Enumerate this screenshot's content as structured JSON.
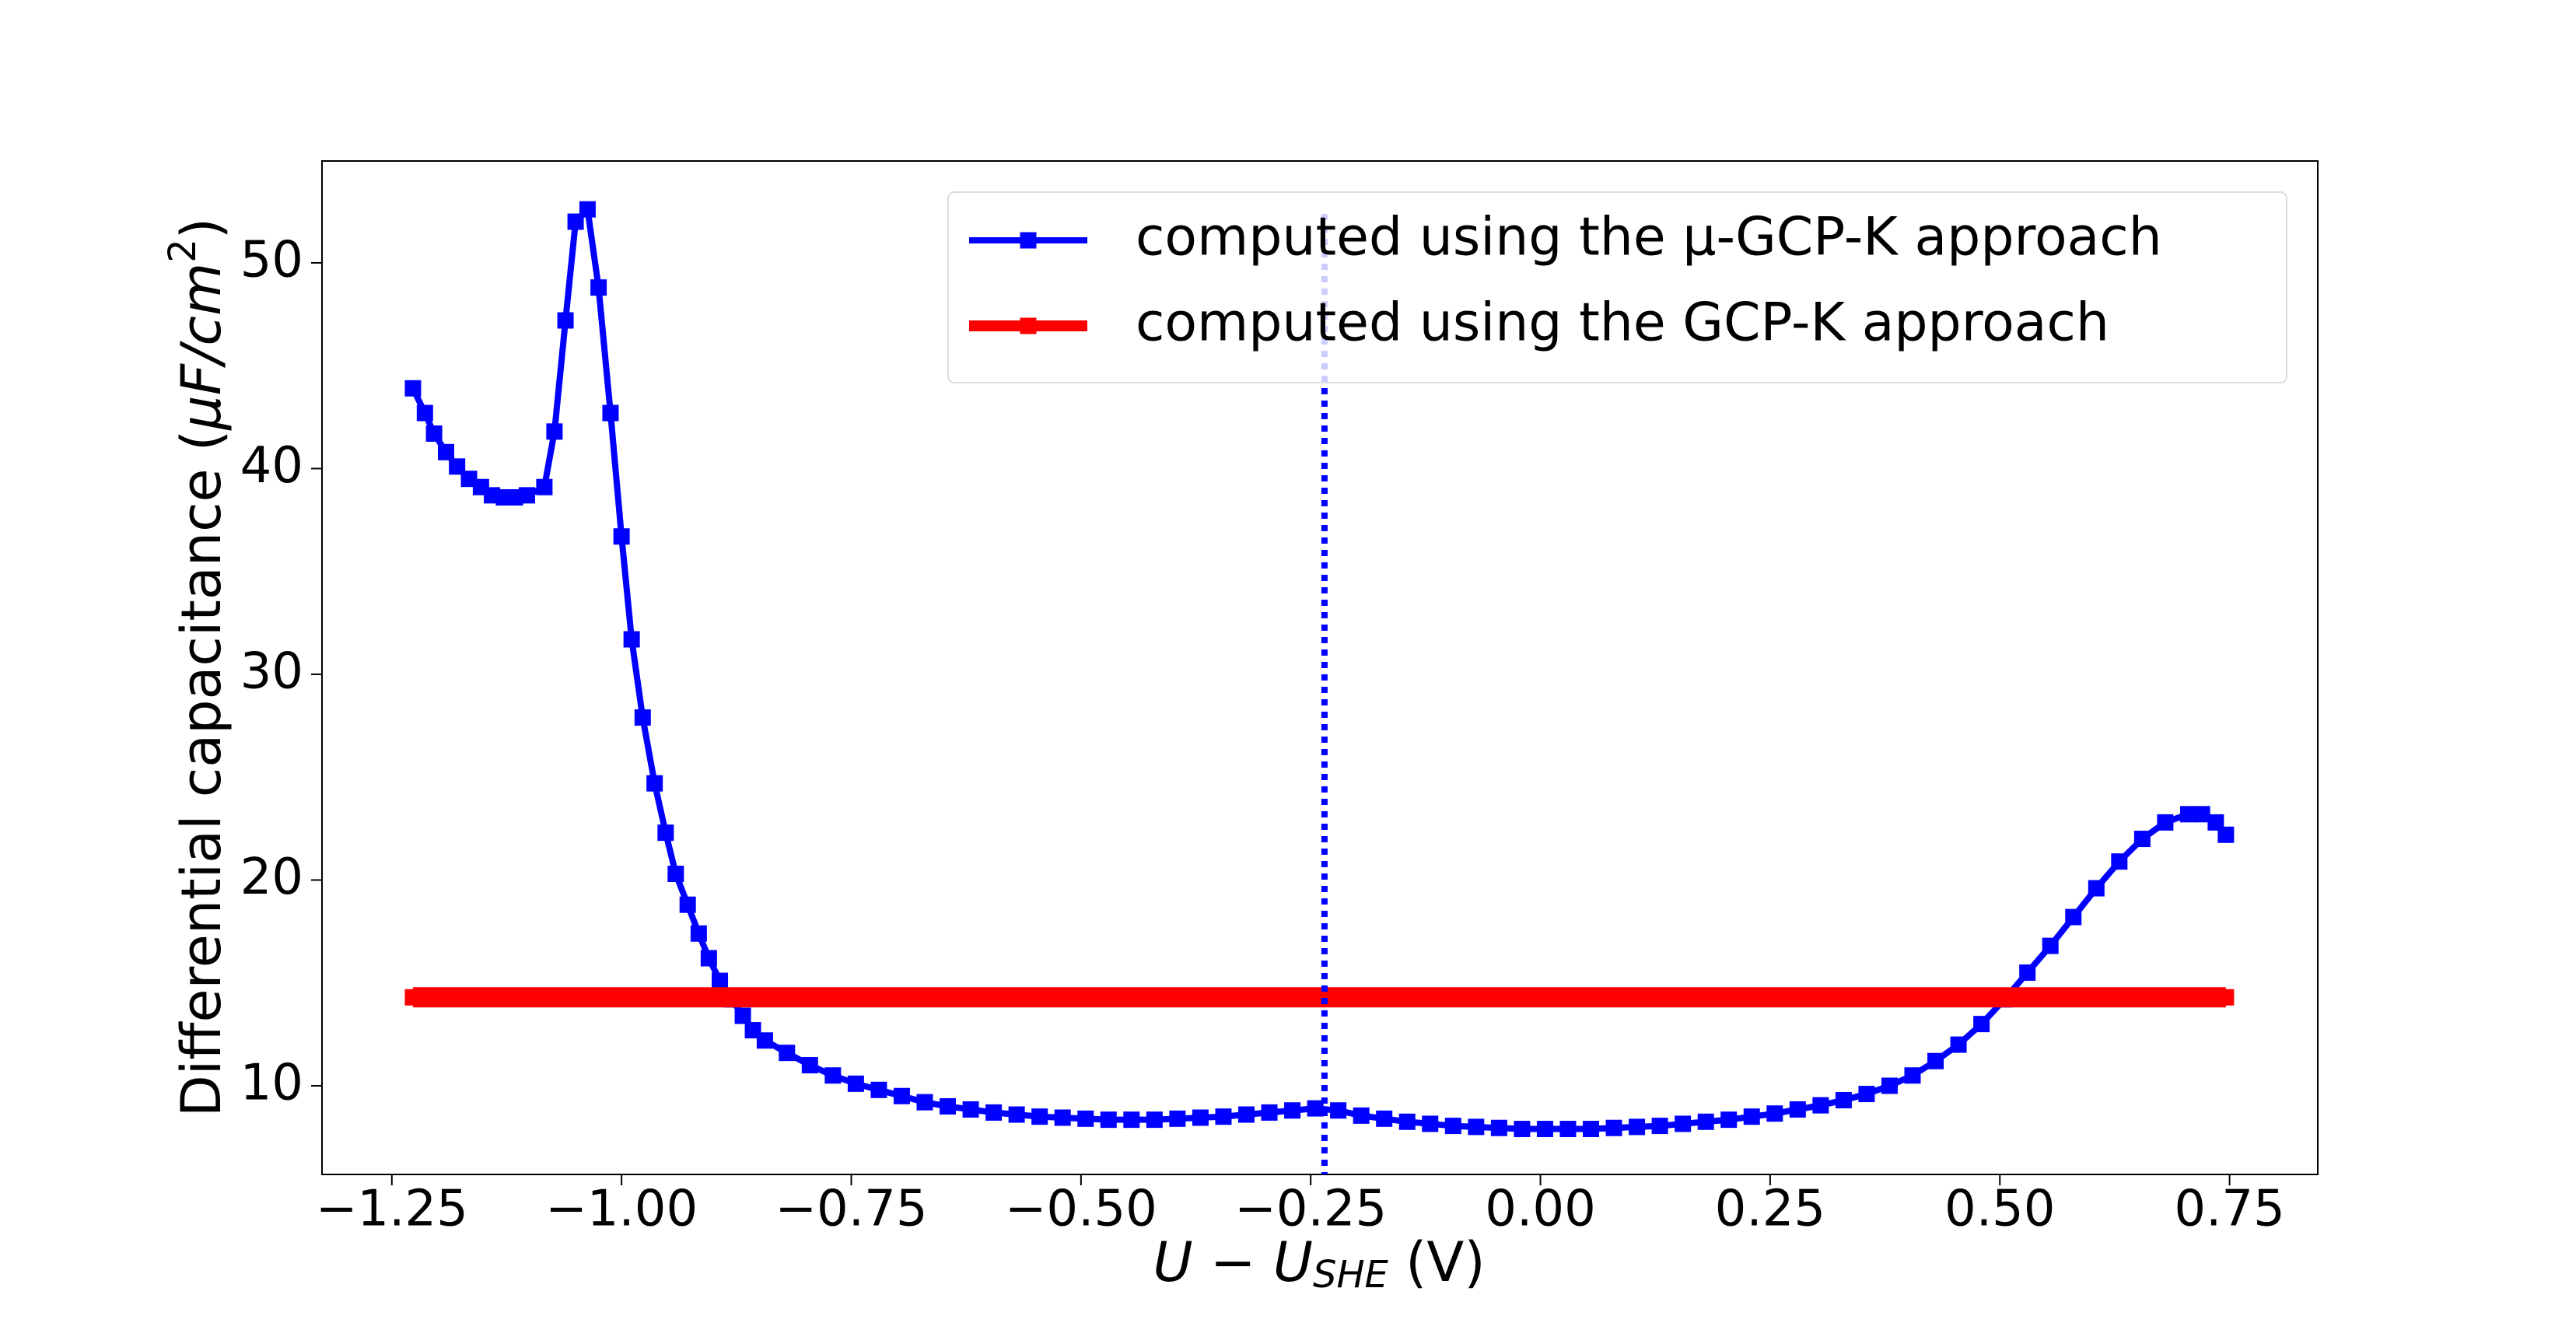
{
  "chart_data": {
    "type": "line",
    "xlabel": [
      "U − U",
      "SHE",
      " (V)"
    ],
    "ylabel": [
      "Differential capacitance (",
      "μF/cm",
      "2",
      ")"
    ],
    "xlim": [
      -1.326,
      0.846
    ],
    "ylim": [
      5.69,
      54.95
    ],
    "xticks": [
      {
        "value": -1.25,
        "label": "−1.25"
      },
      {
        "value": -1.0,
        "label": "−1.00"
      },
      {
        "value": -0.75,
        "label": "−0.75"
      },
      {
        "value": -0.5,
        "label": "−0.50"
      },
      {
        "value": -0.25,
        "label": "−0.25"
      },
      {
        "value": 0,
        "label": "0.00"
      },
      0.25,
      {
        "value": 0.5,
        "label": "0.50"
      },
      0.75
    ],
    "yticks": [
      10,
      20,
      30,
      40,
      50
    ],
    "vline": {
      "x": -0.235,
      "color": "#0000ff"
    },
    "legend": "upper right",
    "series": [
      {
        "name": "computed using the μ-GCP-K approach",
        "color": "#0000ff",
        "x": [
          -1.227,
          -1.214,
          -1.204,
          -1.191,
          -1.179,
          -1.166,
          -1.153,
          -1.141,
          -1.128,
          -1.116,
          -1.103,
          -1.084,
          -1.073,
          -1.061,
          -1.05,
          -1.037,
          -1.025,
          -1.012,
          -1.0,
          -0.989,
          -0.977,
          -0.964,
          -0.952,
          -0.941,
          -0.928,
          -0.916,
          -0.905,
          -0.893,
          -0.88,
          -0.868,
          -0.857,
          -0.844,
          -0.82,
          -0.795,
          -0.77,
          -0.745,
          -0.72,
          -0.695,
          -0.67,
          -0.645,
          -0.62,
          -0.595,
          -0.57,
          -0.545,
          -0.52,
          -0.495,
          -0.47,
          -0.445,
          -0.42,
          -0.395,
          -0.37,
          -0.345,
          -0.32,
          -0.295,
          -0.27,
          -0.245,
          -0.22,
          -0.195,
          -0.17,
          -0.145,
          -0.12,
          -0.095,
          -0.07,
          -0.045,
          -0.02,
          0.005,
          0.03,
          0.055,
          0.08,
          0.105,
          0.13,
          0.155,
          0.18,
          0.205,
          0.23,
          0.255,
          0.28,
          0.305,
          0.33,
          0.355,
          0.38,
          0.405,
          0.43,
          0.455,
          0.48,
          0.505,
          0.53,
          0.555,
          0.58,
          0.605,
          0.63,
          0.655,
          0.68,
          0.705,
          0.72,
          0.735,
          0.746
        ],
        "values": [
          43.9,
          42.7,
          41.7,
          40.8,
          40.1,
          39.5,
          39.1,
          38.7,
          38.6,
          38.6,
          38.7,
          39.1,
          41.8,
          47.2,
          52.0,
          52.6,
          48.8,
          42.7,
          36.7,
          31.7,
          27.9,
          24.7,
          22.3,
          20.3,
          18.8,
          17.4,
          16.2,
          15.1,
          14.2,
          13.4,
          12.7,
          12.2,
          11.6,
          11.0,
          10.5,
          10.1,
          9.8,
          9.5,
          9.2,
          9.0,
          8.85,
          8.7,
          8.6,
          8.5,
          8.45,
          8.4,
          8.35,
          8.35,
          8.35,
          8.4,
          8.45,
          8.5,
          8.6,
          8.7,
          8.8,
          8.9,
          8.8,
          8.55,
          8.4,
          8.25,
          8.15,
          8.05,
          8.0,
          7.95,
          7.9,
          7.9,
          7.9,
          7.9,
          7.95,
          8.0,
          8.05,
          8.15,
          8.25,
          8.35,
          8.5,
          8.65,
          8.85,
          9.05,
          9.3,
          9.6,
          10.0,
          10.5,
          11.2,
          12.0,
          13.0,
          14.2,
          15.5,
          16.8,
          18.2,
          19.6,
          20.9,
          22.0,
          22.8,
          23.2,
          23.2,
          22.8,
          22.2
        ]
      },
      {
        "name": "computed using the GCP-K approach",
        "color": "#ff0000",
        "x": [
          -1.227,
          0.746
        ],
        "values": [
          14.3,
          14.3
        ]
      }
    ]
  }
}
